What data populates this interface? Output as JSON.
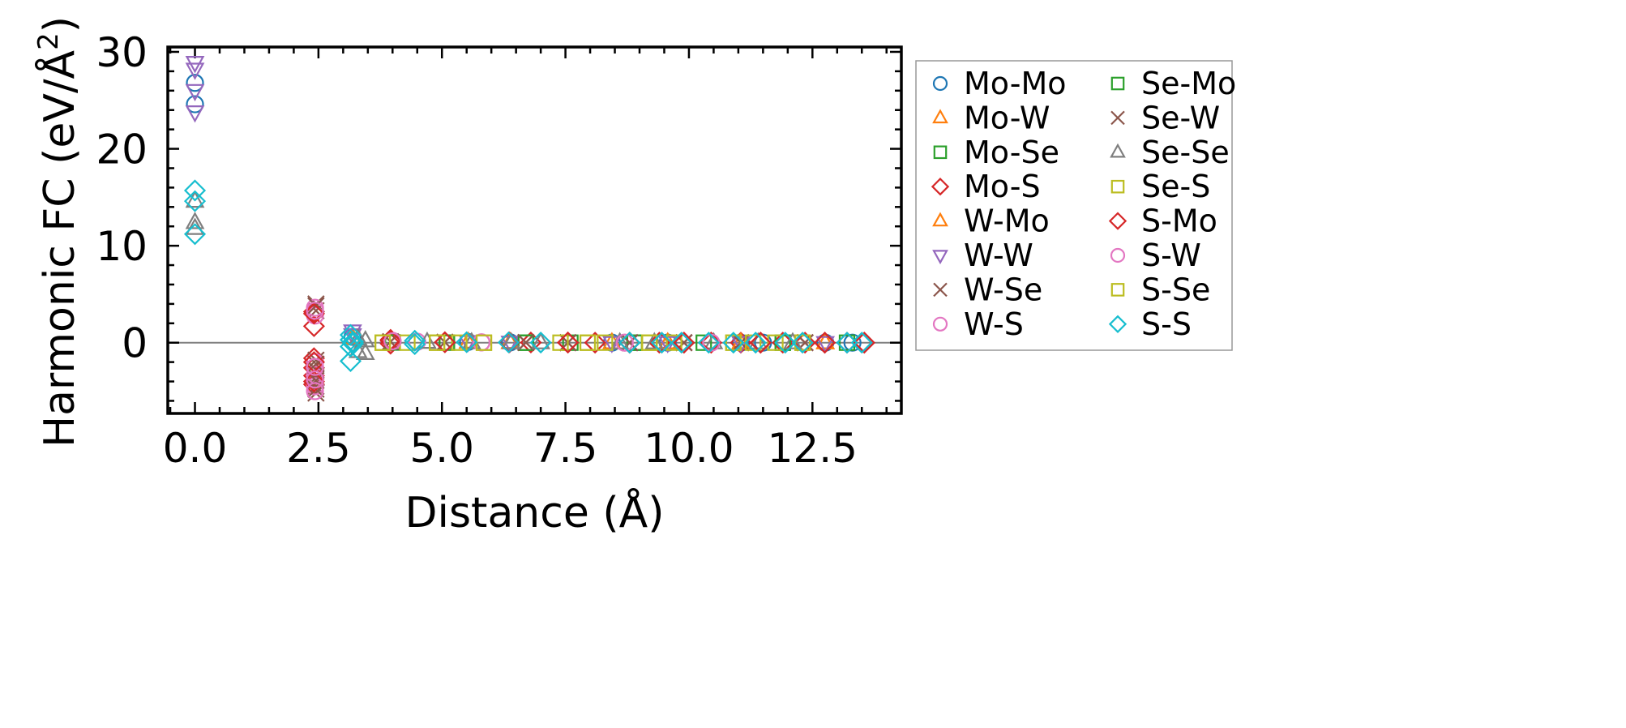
{
  "chart_data": {
    "type": "scatter",
    "title": "",
    "xlabel": "Distance (Å)",
    "ylabel_main": "Harmonic FC (eV/Å",
    "ylabel_sup": "2",
    "ylabel_end": ")",
    "xlim": [
      -0.55,
      14.3
    ],
    "ylim": [
      -7.3,
      30.5
    ],
    "xticks": [
      0.0,
      2.5,
      5.0,
      7.5,
      10.0,
      12.5
    ],
    "xtick_labels": [
      "0.0",
      "2.5",
      "5.0",
      "7.5",
      "10.0",
      "12.5"
    ],
    "yticks": [
      0,
      10,
      20,
      30
    ],
    "ytick_labels": [
      "0",
      "10",
      "20",
      "30"
    ],
    "x_minor_step": 0.5,
    "y_minor_step": 2,
    "zero_line": true,
    "grid": false,
    "legend_position": "outside-right",
    "legend_columns": 2,
    "series": [
      {
        "name": "Mo-Mo",
        "marker": "circle",
        "color": "#1f77b4",
        "x": [
          0,
          0,
          3.19,
          5.53,
          6.38,
          8.44,
          9.57,
          11.05,
          11.5,
          12.76,
          13.31
        ],
        "y": [
          24.6,
          26.8,
          0.6,
          0.08,
          0.03,
          0.01,
          0.01,
          0,
          0,
          0,
          0
        ]
      },
      {
        "name": "Mo-W",
        "marker": "triangle-up",
        "color": "#ff7f0e",
        "x": [
          3.19,
          5.53,
          6.38,
          8.44,
          9.57,
          11.05,
          12.76
        ],
        "y": [
          0.5,
          0.07,
          0.03,
          0.01,
          0.01,
          0,
          0
        ]
      },
      {
        "name": "Mo-Se",
        "marker": "square",
        "color": "#2ca02c",
        "x": [
          4.0,
          5.1,
          6.7,
          7.6,
          8.9,
          10.3,
          11.9,
          13.2
        ],
        "y": [
          0.02,
          0.01,
          0,
          0,
          0,
          0,
          0,
          0
        ]
      },
      {
        "name": "Mo-S",
        "marker": "diamond",
        "color": "#d62728",
        "x": [
          2.41,
          2.41,
          2.41,
          2.41,
          2.41,
          2.41,
          3.96,
          3.96,
          5.06,
          6.36,
          6.8,
          7.55,
          8.1,
          8.8,
          9.4,
          9.9,
          10.45,
          11.05,
          11.45,
          11.9,
          12.35,
          12.75,
          13.2,
          13.55
        ],
        "y": [
          3.2,
          1.7,
          -1.6,
          -2.6,
          -3.4,
          -4.3,
          0.3,
          -0.1,
          0.05,
          0.04,
          0.02,
          0.02,
          0,
          0,
          0,
          0,
          0,
          0,
          0,
          0,
          0,
          0,
          0,
          0
        ]
      },
      {
        "name": "W-Mo",
        "marker": "triangle-up",
        "color": "#ff7f0e",
        "x": [
          3.19,
          5.53,
          6.38,
          9.57,
          11.05,
          12.76
        ],
        "y": [
          0.45,
          0.06,
          0.03,
          0,
          0,
          0
        ]
      },
      {
        "name": "W-W",
        "marker": "triangle-down",
        "color": "#9467bd",
        "x": [
          0,
          0,
          0,
          0,
          3.19,
          3.19,
          5.53,
          6.38,
          8.44,
          9.57,
          11.05,
          12.76
        ],
        "y": [
          28.9,
          28.2,
          26.0,
          23.8,
          1.2,
          0.8,
          0.1,
          0.04,
          0.01,
          0,
          0,
          0
        ]
      },
      {
        "name": "W-Se",
        "marker": "x",
        "color": "#8c564b",
        "x": [
          2.45,
          2.45,
          2.45,
          2.45,
          2.45,
          2.45,
          2.45,
          3.96,
          5.06,
          6.7,
          7.55,
          8.8,
          9.9,
          11.05,
          12.35
        ],
        "y": [
          4.0,
          3.3,
          -1.8,
          -2.8,
          -3.6,
          -4.5,
          -5.2,
          0.1,
          0.05,
          0.02,
          0,
          0,
          0,
          0,
          0
        ]
      },
      {
        "name": "W-S",
        "marker": "circle",
        "color": "#e377c2",
        "x": [
          2.43,
          2.43,
          2.43,
          2.43,
          2.43,
          4.0,
          4.5,
          5.8,
          8.7,
          10.45
        ],
        "y": [
          3.6,
          2.8,
          -2.0,
          -3.3,
          -4.5,
          0.2,
          0.1,
          0.04,
          0,
          0
        ]
      },
      {
        "name": "Se-Mo",
        "marker": "square",
        "color": "#2ca02c",
        "x": [
          4.0,
          5.1,
          6.7,
          8.9,
          11.9
        ],
        "y": [
          0.02,
          0.01,
          0,
          0,
          0
        ]
      },
      {
        "name": "Se-W",
        "marker": "x",
        "color": "#8c564b",
        "x": [
          2.45,
          2.45,
          2.45,
          2.45,
          3.96,
          5.06,
          6.7,
          7.55,
          8.8,
          9.9,
          11.05,
          12.35
        ],
        "y": [
          3.8,
          -2.2,
          -3.9,
          -4.8,
          0.1,
          0.05,
          0.02,
          0,
          0,
          0,
          0,
          0
        ]
      },
      {
        "name": "Se-Se",
        "marker": "triangle-up",
        "color": "#7f7f7f",
        "x": [
          0,
          0,
          0,
          3.3,
          3.3,
          3.45,
          3.45,
          4.7,
          5.6,
          6.4,
          7.0,
          8.6,
          9.3,
          10.5,
          11.4,
          12.1
        ],
        "y": [
          14.6,
          12.4,
          11.8,
          0.4,
          -0.9,
          0.2,
          -1.1,
          0.05,
          0.02,
          0.01,
          0,
          0,
          0,
          0,
          0,
          0
        ]
      },
      {
        "name": "Se-S",
        "marker": "square",
        "color": "#bcbd22",
        "x": [
          3.8,
          4.3,
          4.9,
          5.35,
          5.85,
          7.4,
          7.95,
          8.3,
          9.2,
          9.7,
          10.9,
          11.3,
          11.75,
          12.3
        ],
        "y": [
          0,
          0,
          0,
          0,
          0,
          0,
          0,
          0,
          0,
          0,
          0,
          0,
          0,
          0
        ]
      },
      {
        "name": "S-Mo",
        "marker": "diamond",
        "color": "#d62728",
        "x": [
          2.41,
          2.41,
          2.41,
          3.96,
          5.06,
          6.36,
          7.55,
          8.8,
          9.9,
          10.45,
          11.45,
          12.75,
          13.55
        ],
        "y": [
          3.0,
          -2.0,
          -4.0,
          0.2,
          0.04,
          0.03,
          0.01,
          0,
          0,
          0,
          0,
          0,
          0
        ]
      },
      {
        "name": "S-W",
        "marker": "circle",
        "color": "#e377c2",
        "x": [
          2.43,
          2.43,
          2.43,
          2.43,
          4.0,
          5.8,
          8.7,
          10.45
        ],
        "y": [
          3.3,
          -2.5,
          -3.8,
          -5.0,
          0.15,
          0.03,
          0,
          0
        ]
      },
      {
        "name": "S-Se",
        "marker": "square",
        "color": "#bcbd22",
        "x": [
          3.8,
          4.9,
          5.85,
          7.95,
          9.2,
          10.9,
          12.3
        ],
        "y": [
          0,
          0,
          0,
          0,
          0,
          0,
          0
        ]
      },
      {
        "name": "S-S",
        "marker": "diamond",
        "color": "#17becf",
        "x": [
          0,
          0,
          0,
          3.15,
          3.15,
          3.15,
          3.15,
          3.2,
          3.2,
          4.45,
          4.45,
          5.5,
          6.35,
          7.0,
          8.8,
          9.45,
          9.85,
          10.4,
          10.9,
          11.35,
          11.95,
          12.3,
          13.2,
          13.5
        ],
        "y": [
          15.7,
          14.6,
          11.2,
          0.8,
          0.3,
          -0.4,
          -1.9,
          0.1,
          -0.1,
          0.2,
          -0.15,
          0.05,
          0.03,
          0.01,
          0,
          0,
          0,
          0,
          0,
          0,
          0,
          0,
          0,
          0
        ]
      }
    ]
  }
}
